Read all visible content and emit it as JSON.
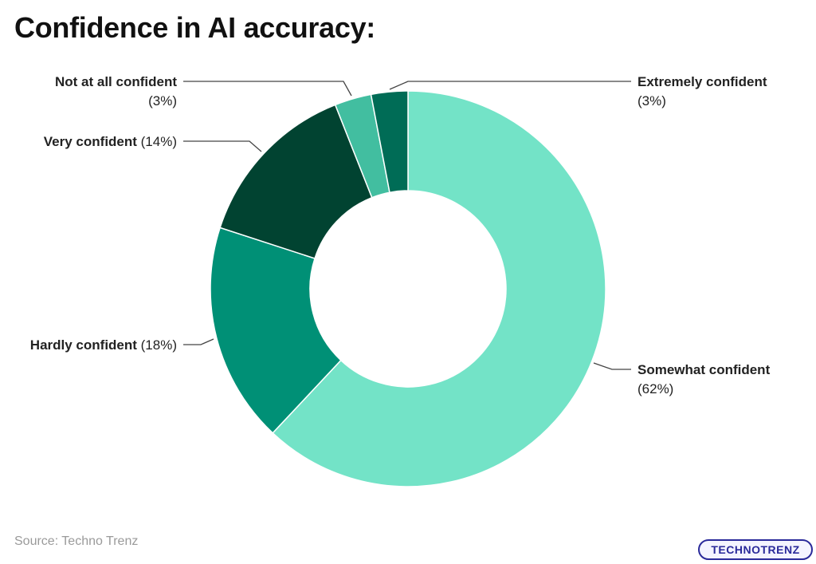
{
  "title": "Confidence in AI accuracy:",
  "source": "Source: Techno Trenz",
  "logo_text": "TECHNOTRENZ",
  "chart_data": {
    "type": "pie",
    "donut": true,
    "title": "Confidence in AI accuracy:",
    "slices": [
      {
        "name": "Somewhat confident",
        "value": 62,
        "pct_label": "(62%)",
        "color": "#73e3c7"
      },
      {
        "name": "Hardly confident",
        "value": 18,
        "pct_label": "(18%)",
        "color": "#009076"
      },
      {
        "name": "Very confident",
        "value": 14,
        "pct_label": "(14%)",
        "color": "#014331"
      },
      {
        "name": "Not at all confident",
        "value": 3,
        "pct_label": "(3%)",
        "color": "#42bea0"
      },
      {
        "name": "Extremely confident",
        "value": 3,
        "pct_label": "(3%)",
        "color": "#006c56"
      }
    ]
  }
}
